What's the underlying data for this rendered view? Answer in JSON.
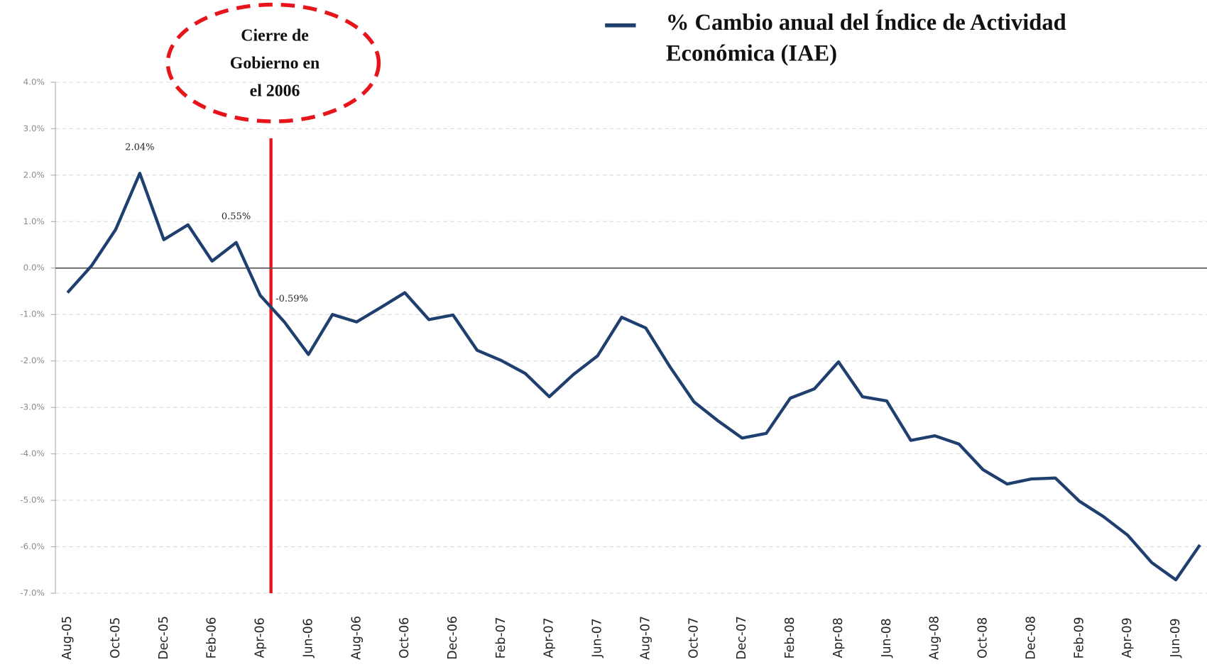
{
  "chart_data": {
    "type": "line",
    "categories": [
      "Aug-05",
      null,
      "Oct-05",
      null,
      "Dec-05",
      null,
      "Feb-06",
      null,
      "Apr-06",
      null,
      "Jun-06",
      null,
      "Aug-06",
      null,
      "Oct-06",
      null,
      "Dec-06",
      null,
      "Feb-07",
      null,
      "Apr-07",
      null,
      "Jun-07",
      null,
      "Aug-07",
      null,
      "Oct-07",
      null,
      "Dec-07",
      null,
      "Feb-08",
      null,
      "Apr-08",
      null,
      "Jun-08",
      null,
      "Aug-08",
      null,
      "Oct-08",
      null,
      "Dec-08",
      null,
      "Feb-09",
      null,
      "Apr-09",
      null,
      "Jun-09",
      null
    ],
    "series": [
      {
        "name": "% Cambio anual del Índice de Actividad Económica (IAE)",
        "color": "#1f3f6e",
        "values": [
          -0.53,
          0.05,
          0.83,
          2.04,
          0.61,
          0.93,
          0.15,
          0.55,
          -0.59,
          -1.16,
          -1.86,
          -1.0,
          -1.16,
          -0.85,
          -0.53,
          -1.11,
          -1.01,
          -1.77,
          -1.99,
          -2.27,
          -2.77,
          -2.29,
          -1.89,
          -1.06,
          -1.29,
          -2.12,
          -2.88,
          -3.29,
          -3.66,
          -3.56,
          -2.8,
          -2.6,
          -2.02,
          -2.77,
          -2.86,
          -3.71,
          -3.61,
          -3.79,
          -4.34,
          -4.65,
          -4.54,
          -4.52,
          -5.02,
          -5.35,
          -5.75,
          -6.34,
          -6.71,
          -5.96
        ],
        "value_labels": [
          null,
          null,
          null,
          "2.04%",
          null,
          null,
          null,
          "0.55%",
          "-0.59%",
          null,
          null,
          null,
          null,
          null,
          null,
          null,
          null,
          null,
          null,
          null,
          null,
          null,
          null,
          null,
          null,
          null,
          null,
          null,
          null,
          null,
          null,
          null,
          null,
          null,
          null,
          null,
          null,
          null,
          null,
          null,
          null,
          null,
          null,
          null,
          null,
          null,
          null,
          null
        ]
      }
    ],
    "ylim": [
      -7,
      4
    ],
    "yticks": [
      {
        "value": 4,
        "label": "4.0%"
      },
      {
        "value": 3,
        "label": "3.0%"
      },
      {
        "value": 2,
        "label": "2.0%"
      },
      {
        "value": 1,
        "label": "1.0%"
      },
      {
        "value": 0,
        "label": "0.0%"
      },
      {
        "value": -1,
        "label": "-1.0%"
      },
      {
        "value": -2,
        "label": "-2.0%"
      },
      {
        "value": -3,
        "label": "-3.0%"
      },
      {
        "value": -4,
        "label": "-4.0%"
      },
      {
        "value": -5,
        "label": "-5.0%"
      },
      {
        "value": -6,
        "label": "-6.0%"
      },
      {
        "value": -7,
        "label": "-7.0%"
      }
    ],
    "grid": true,
    "legend": "top-right",
    "annotation": [
      "Cierre de",
      "Gobierno en",
      "el 2006"
    ]
  }
}
